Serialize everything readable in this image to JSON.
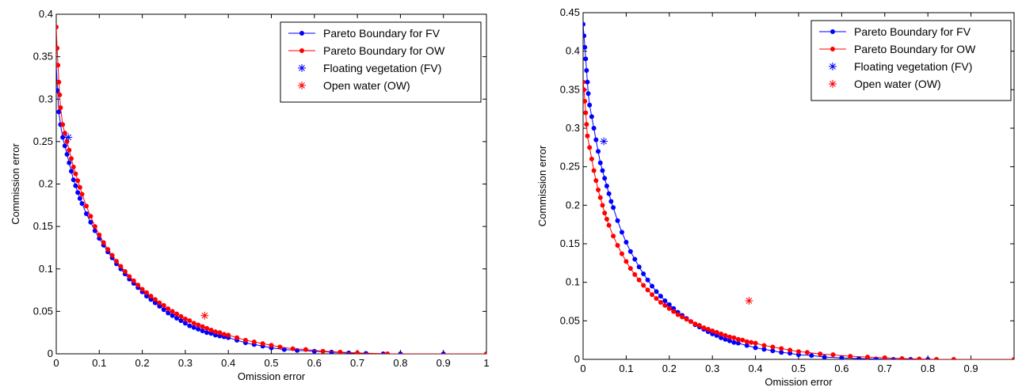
{
  "chart_data": [
    {
      "type": "line",
      "xlabel": "Omission error",
      "ylabel": "Commission error",
      "xlim": [
        0,
        1
      ],
      "ylim": [
        0,
        0.4
      ],
      "xticks": [
        0,
        0.1,
        0.2,
        0.3,
        0.4,
        0.5,
        0.6,
        0.7,
        0.8,
        0.9,
        1
      ],
      "xtick_labels": [
        "0",
        "0.1",
        "0.2",
        "0.3",
        "0.4",
        "0.5",
        "0.6",
        "0.7",
        "0.8",
        "0.9",
        "1"
      ],
      "yticks": [
        0,
        0.05,
        0.1,
        0.15,
        0.2,
        0.25,
        0.3,
        0.35,
        0.4
      ],
      "ytick_labels": [
        "0",
        "0.05",
        "0.1",
        "0.15",
        "0.2",
        "0.25",
        "0.3",
        "0.35",
        "0.4"
      ],
      "grid": false,
      "legend_placement": "top-right",
      "series": [
        {
          "name": "Pareto Boundary for FV",
          "kind": "line-marker",
          "color": "#0000ff",
          "x": [
            0.0,
            0.003,
            0.006,
            0.01,
            0.015,
            0.02,
            0.025,
            0.03,
            0.035,
            0.04,
            0.045,
            0.05,
            0.055,
            0.06,
            0.07,
            0.08,
            0.09,
            0.1,
            0.11,
            0.12,
            0.13,
            0.14,
            0.15,
            0.16,
            0.17,
            0.18,
            0.19,
            0.2,
            0.21,
            0.22,
            0.23,
            0.24,
            0.25,
            0.26,
            0.27,
            0.28,
            0.29,
            0.3,
            0.31,
            0.32,
            0.33,
            0.34,
            0.35,
            0.36,
            0.37,
            0.38,
            0.39,
            0.4,
            0.42,
            0.44,
            0.46,
            0.48,
            0.5,
            0.53,
            0.56,
            0.6,
            0.64,
            0.68,
            0.72,
            0.76,
            0.8,
            0.9,
            1.0
          ],
          "y": [
            0.34,
            0.31,
            0.285,
            0.27,
            0.255,
            0.245,
            0.235,
            0.225,
            0.215,
            0.205,
            0.198,
            0.19,
            0.183,
            0.177,
            0.165,
            0.155,
            0.145,
            0.136,
            0.128,
            0.12,
            0.113,
            0.106,
            0.1,
            0.094,
            0.088,
            0.083,
            0.078,
            0.073,
            0.068,
            0.064,
            0.06,
            0.056,
            0.052,
            0.048,
            0.045,
            0.042,
            0.039,
            0.036,
            0.033,
            0.031,
            0.029,
            0.027,
            0.025,
            0.024,
            0.022,
            0.021,
            0.02,
            0.019,
            0.016,
            0.013,
            0.011,
            0.009,
            0.007,
            0.005,
            0.004,
            0.003,
            0.002,
            0.001,
            0.0005,
            0.0,
            0.0,
            0.0,
            0.0
          ]
        },
        {
          "name": "Pareto Boundary for OW",
          "kind": "line-marker",
          "color": "#ff0000",
          "x": [
            0.0,
            0.002,
            0.004,
            0.006,
            0.008,
            0.01,
            0.015,
            0.02,
            0.025,
            0.03,
            0.035,
            0.04,
            0.045,
            0.05,
            0.055,
            0.06,
            0.07,
            0.08,
            0.09,
            0.1,
            0.11,
            0.12,
            0.13,
            0.14,
            0.15,
            0.16,
            0.17,
            0.18,
            0.19,
            0.2,
            0.21,
            0.22,
            0.23,
            0.24,
            0.25,
            0.26,
            0.27,
            0.28,
            0.29,
            0.3,
            0.31,
            0.32,
            0.33,
            0.34,
            0.35,
            0.36,
            0.37,
            0.38,
            0.39,
            0.4,
            0.42,
            0.44,
            0.46,
            0.48,
            0.5,
            0.52,
            0.55,
            0.58,
            0.62,
            0.66,
            0.7,
            0.77,
            1.0
          ],
          "y": [
            0.385,
            0.36,
            0.34,
            0.32,
            0.305,
            0.29,
            0.27,
            0.26,
            0.25,
            0.24,
            0.23,
            0.22,
            0.212,
            0.204,
            0.196,
            0.188,
            0.174,
            0.162,
            0.15,
            0.14,
            0.131,
            0.123,
            0.116,
            0.109,
            0.103,
            0.097,
            0.091,
            0.086,
            0.081,
            0.076,
            0.072,
            0.068,
            0.064,
            0.06,
            0.057,
            0.053,
            0.05,
            0.047,
            0.044,
            0.041,
            0.039,
            0.036,
            0.034,
            0.032,
            0.03,
            0.028,
            0.026,
            0.025,
            0.023,
            0.022,
            0.019,
            0.016,
            0.014,
            0.012,
            0.01,
            0.008,
            0.006,
            0.005,
            0.003,
            0.002,
            0.001,
            0.0,
            0.0
          ]
        },
        {
          "name": "Floating vegetation (FV)",
          "kind": "star",
          "color": "#0000ff",
          "x": [
            0.028
          ],
          "y": [
            0.255
          ]
        },
        {
          "name": "Open water (OW)",
          "kind": "star",
          "color": "#ff0000",
          "x": [
            0.345
          ],
          "y": [
            0.045
          ]
        }
      ]
    },
    {
      "type": "line",
      "xlabel": "Omission error",
      "ylabel": "Commission error",
      "xlim": [
        0,
        1
      ],
      "ylim": [
        0,
        0.45
      ],
      "xticks": [
        0,
        0.1,
        0.2,
        0.3,
        0.4,
        0.5,
        0.6,
        0.7,
        0.8,
        0.9
      ],
      "xtick_labels": [
        "0",
        "0.1",
        "0.2",
        "0.3",
        "0.4",
        "0.5",
        "0.6",
        "0.7",
        "0.8",
        "0.9"
      ],
      "yticks": [
        0,
        0.05,
        0.1,
        0.15,
        0.2,
        0.25,
        0.3,
        0.35,
        0.4,
        0.45
      ],
      "ytick_labels": [
        "0",
        "0.05",
        "0.1",
        "0.15",
        "0.2",
        "0.25",
        "0.3",
        "0.35",
        "0.4",
        "0.45"
      ],
      "grid": false,
      "legend_placement": "top-right",
      "series": [
        {
          "name": "Pareto Boundary for FV",
          "kind": "line-marker",
          "color": "#0000ff",
          "x": [
            0.0,
            0.002,
            0.004,
            0.006,
            0.008,
            0.01,
            0.012,
            0.015,
            0.02,
            0.025,
            0.03,
            0.035,
            0.04,
            0.045,
            0.05,
            0.055,
            0.06,
            0.065,
            0.07,
            0.08,
            0.09,
            0.1,
            0.11,
            0.12,
            0.13,
            0.14,
            0.15,
            0.16,
            0.17,
            0.18,
            0.19,
            0.2,
            0.21,
            0.22,
            0.23,
            0.24,
            0.25,
            0.26,
            0.27,
            0.28,
            0.29,
            0.3,
            0.31,
            0.32,
            0.33,
            0.34,
            0.35,
            0.36,
            0.38,
            0.4,
            0.42,
            0.44,
            0.46,
            0.48,
            0.5,
            0.53,
            0.56,
            0.6,
            0.64,
            0.68,
            0.72,
            0.76,
            0.8,
            1.0
          ],
          "y": [
            0.435,
            0.42,
            0.405,
            0.39,
            0.375,
            0.36,
            0.345,
            0.33,
            0.315,
            0.3,
            0.285,
            0.27,
            0.255,
            0.245,
            0.235,
            0.225,
            0.215,
            0.205,
            0.197,
            0.18,
            0.165,
            0.152,
            0.14,
            0.13,
            0.12,
            0.111,
            0.103,
            0.095,
            0.088,
            0.082,
            0.076,
            0.071,
            0.066,
            0.061,
            0.057,
            0.053,
            0.049,
            0.045,
            0.042,
            0.039,
            0.036,
            0.033,
            0.031,
            0.028,
            0.026,
            0.024,
            0.022,
            0.021,
            0.018,
            0.015,
            0.013,
            0.011,
            0.009,
            0.008,
            0.006,
            0.005,
            0.003,
            0.002,
            0.001,
            0.0005,
            0.0,
            0.0,
            0.0,
            0.0
          ]
        },
        {
          "name": "Pareto Boundary for OW",
          "kind": "line-marker",
          "color": "#ff0000",
          "x": [
            0.0,
            0.002,
            0.004,
            0.006,
            0.008,
            0.01,
            0.015,
            0.02,
            0.025,
            0.03,
            0.035,
            0.04,
            0.045,
            0.05,
            0.055,
            0.06,
            0.07,
            0.08,
            0.09,
            0.1,
            0.11,
            0.12,
            0.13,
            0.14,
            0.15,
            0.16,
            0.17,
            0.18,
            0.19,
            0.2,
            0.21,
            0.22,
            0.23,
            0.24,
            0.25,
            0.26,
            0.27,
            0.28,
            0.29,
            0.3,
            0.31,
            0.32,
            0.33,
            0.34,
            0.35,
            0.36,
            0.37,
            0.38,
            0.39,
            0.4,
            0.42,
            0.44,
            0.46,
            0.48,
            0.5,
            0.52,
            0.55,
            0.58,
            0.62,
            0.66,
            0.7,
            0.74,
            0.78,
            0.82,
            0.86,
            1.0
          ],
          "y": [
            0.36,
            0.35,
            0.335,
            0.32,
            0.305,
            0.29,
            0.275,
            0.26,
            0.245,
            0.232,
            0.22,
            0.21,
            0.2,
            0.19,
            0.182,
            0.174,
            0.16,
            0.148,
            0.137,
            0.127,
            0.118,
            0.11,
            0.103,
            0.096,
            0.09,
            0.084,
            0.079,
            0.074,
            0.07,
            0.066,
            0.062,
            0.058,
            0.055,
            0.052,
            0.049,
            0.046,
            0.044,
            0.041,
            0.039,
            0.037,
            0.035,
            0.033,
            0.031,
            0.029,
            0.028,
            0.026,
            0.025,
            0.023,
            0.022,
            0.021,
            0.018,
            0.016,
            0.014,
            0.012,
            0.01,
            0.009,
            0.007,
            0.006,
            0.004,
            0.003,
            0.002,
            0.001,
            0.0005,
            0.0,
            0.0,
            0.0
          ]
        },
        {
          "name": "Floating vegetation (FV)",
          "kind": "star",
          "color": "#0000ff",
          "x": [
            0.048
          ],
          "y": [
            0.283
          ]
        },
        {
          "name": "Open water (OW)",
          "kind": "star",
          "color": "#ff0000",
          "x": [
            0.385
          ],
          "y": [
            0.076
          ]
        }
      ]
    }
  ]
}
